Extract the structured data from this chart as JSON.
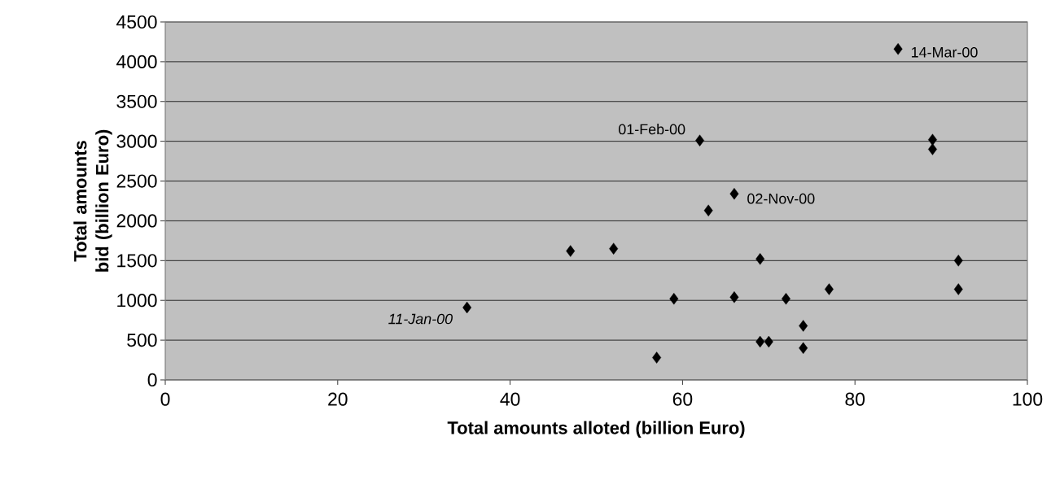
{
  "chart_data": {
    "type": "scatter",
    "xlabel": "Total amounts alloted (billion Euro)",
    "ylabel": "Total amounts bid (billion Euro)",
    "x": [
      35,
      47,
      52,
      57,
      59,
      62,
      63,
      66,
      66,
      69,
      69,
      70,
      72,
      74,
      74,
      77,
      85,
      89,
      89,
      92,
      92
    ],
    "values": [
      910,
      1620,
      1650,
      280,
      1020,
      3010,
      2130,
      2340,
      1040,
      1520,
      480,
      480,
      1020,
      680,
      400,
      1140,
      4160,
      3020,
      2900,
      1500,
      1140
    ],
    "color": "#000000",
    "marker": "diamond",
    "grid": "y",
    "xlim": [
      0,
      100
    ],
    "xticks": [
      0,
      20,
      40,
      60,
      80,
      100
    ],
    "ylim": [
      0,
      4500
    ],
    "yticks": [
      0,
      500,
      1000,
      1500,
      2000,
      2500,
      3000,
      3500,
      4000,
      4500
    ],
    "annotations": [
      {
        "text": "11-Jan-00",
        "x": 35,
        "y": 910
      },
      {
        "text": "01-Feb-00",
        "x": 62,
        "y": 3010
      },
      {
        "text": "02-Nov-00",
        "x": 66,
        "y": 2340
      },
      {
        "text": "14-Mar-00",
        "x": 85,
        "y": 4160
      }
    ]
  }
}
